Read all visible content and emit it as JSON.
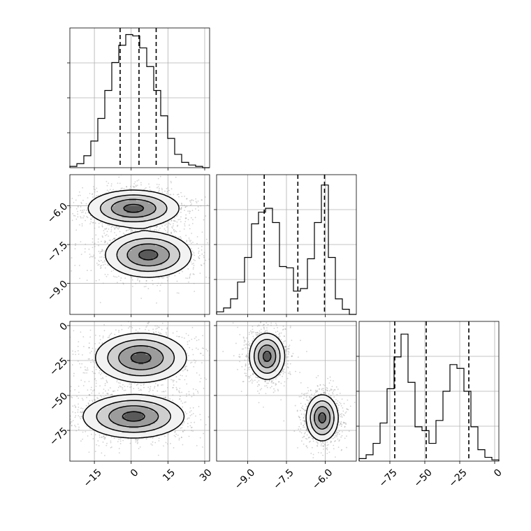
{
  "chart_data": {
    "type": "corner",
    "parameters": [
      {
        "range": [
          -25,
          32
        ],
        "ticks": [
          -15,
          0,
          15,
          30
        ],
        "tick_labels": [
          "−15",
          "0",
          "15",
          "30"
        ]
      },
      {
        "range": [
          -10.2,
          -4.8
        ],
        "ticks": [
          -9.0,
          -7.5,
          -6.0
        ],
        "tick_labels": [
          "−9.0",
          "−7.5",
          "−6.0"
        ]
      },
      {
        "range": [
          -97,
          3
        ],
        "ticks": [
          -75,
          -50,
          -25,
          0
        ],
        "tick_labels": [
          "−75",
          "−50",
          "−25",
          "0"
        ]
      }
    ],
    "histograms": [
      {
        "bins": [
          -25,
          -22.15,
          -19.3,
          -16.45,
          -13.6,
          -10.75,
          -7.9,
          -5.05,
          -2.2,
          0.65,
          3.5,
          6.35,
          9.2,
          12.05,
          14.9,
          17.75,
          20.6,
          23.45,
          26.3,
          29.15,
          32
        ],
        "counts": [
          0.01,
          0.03,
          0.09,
          0.2,
          0.37,
          0.58,
          0.79,
          0.92,
          1.0,
          0.99,
          0.9,
          0.76,
          0.58,
          0.39,
          0.22,
          0.1,
          0.04,
          0.02,
          0.01,
          0.0
        ],
        "quantiles": [
          -4.5,
          3.2,
          10.2
        ],
        "ylim": [
          0,
          1.05
        ]
      },
      {
        "bins": [
          -10.2,
          -9.93,
          -9.66,
          -9.39,
          -9.12,
          -8.85,
          -8.58,
          -8.31,
          -8.04,
          -7.77,
          -7.5,
          -7.23,
          -6.96,
          -6.69,
          -6.42,
          -6.15,
          -5.88,
          -5.61,
          -5.34,
          -5.07,
          -4.8
        ],
        "counts": [
          0.02,
          0.05,
          0.12,
          0.25,
          0.44,
          0.7,
          0.79,
          0.82,
          0.71,
          0.37,
          0.36,
          0.18,
          0.2,
          0.43,
          0.71,
          1.0,
          0.44,
          0.12,
          0.04,
          0.0
        ],
        "quantiles": [
          -8.36,
          -7.06,
          -6.03
        ],
        "ylim": [
          0,
          1.08
        ]
      },
      {
        "bins": [
          -97,
          -92,
          -87,
          -82,
          -77,
          -72,
          -67,
          -62,
          -57,
          -52,
          -47,
          -42,
          -37,
          -32,
          -27,
          -22,
          -17,
          -12,
          -7,
          -2,
          3
        ],
        "counts": [
          0.02,
          0.05,
          0.14,
          0.3,
          0.57,
          0.82,
          1.0,
          0.62,
          0.27,
          0.24,
          0.14,
          0.32,
          0.55,
          0.76,
          0.73,
          0.55,
          0.27,
          0.09,
          0.03,
          0.01
        ],
        "quantiles": [
          -71.5,
          -49,
          -18.5
        ],
        "ylim": [
          0,
          1.1
        ]
      }
    ],
    "pairs": [
      {
        "x": 0,
        "y": 1,
        "modes": [
          {
            "center": [
              1.0,
              -6.1
            ],
            "spread": [
              9.0,
              0.34
            ],
            "weight": 1.0,
            "peak": [
              4.0,
              -6.2
            ]
          },
          {
            "center": [
              7.0,
              -7.9
            ],
            "spread": [
              8.5,
              0.42
            ],
            "weight": 1.0,
            "peak": [
              10.0,
              -7.7
            ]
          }
        ],
        "contour_levels": [
          0.12,
          0.32,
          0.6,
          0.9
        ],
        "scatter_spread": [
          1.3,
          1.3
        ]
      },
      {
        "x": 0,
        "y": 2,
        "modes": [
          {
            "center": [
              4.0,
              -23.0
            ],
            "spread": [
              9.0,
              8.5
            ],
            "weight": 1.0,
            "peak": [
              7.0,
              -22.0
            ]
          },
          {
            "center": [
              1.0,
              -65.0
            ],
            "spread": [
              10.0,
              7.5
            ],
            "weight": 1.0,
            "peak": [
              2.0,
              -65.0
            ]
          }
        ],
        "contour_levels": [
          0.12,
          0.32,
          0.6,
          0.9
        ],
        "scatter_spread": [
          1.3,
          1.3
        ]
      },
      {
        "x": 1,
        "y": 2,
        "modes": [
          {
            "center": [
              -8.25,
              -22.0
            ],
            "spread": [
              0.33,
              8.0
            ],
            "weight": 1.0,
            "peak": [
              -8.25,
              -22.0
            ]
          },
          {
            "center": [
              -6.12,
              -66.0
            ],
            "spread": [
              0.3,
              8.0
            ],
            "weight": 1.0,
            "peak": [
              -6.05,
              -66.0
            ]
          }
        ],
        "contour_levels": [
          0.12,
          0.32,
          0.6,
          0.9
        ],
        "scatter_spread": [
          1.3,
          1.3
        ]
      }
    ],
    "grid": true
  }
}
